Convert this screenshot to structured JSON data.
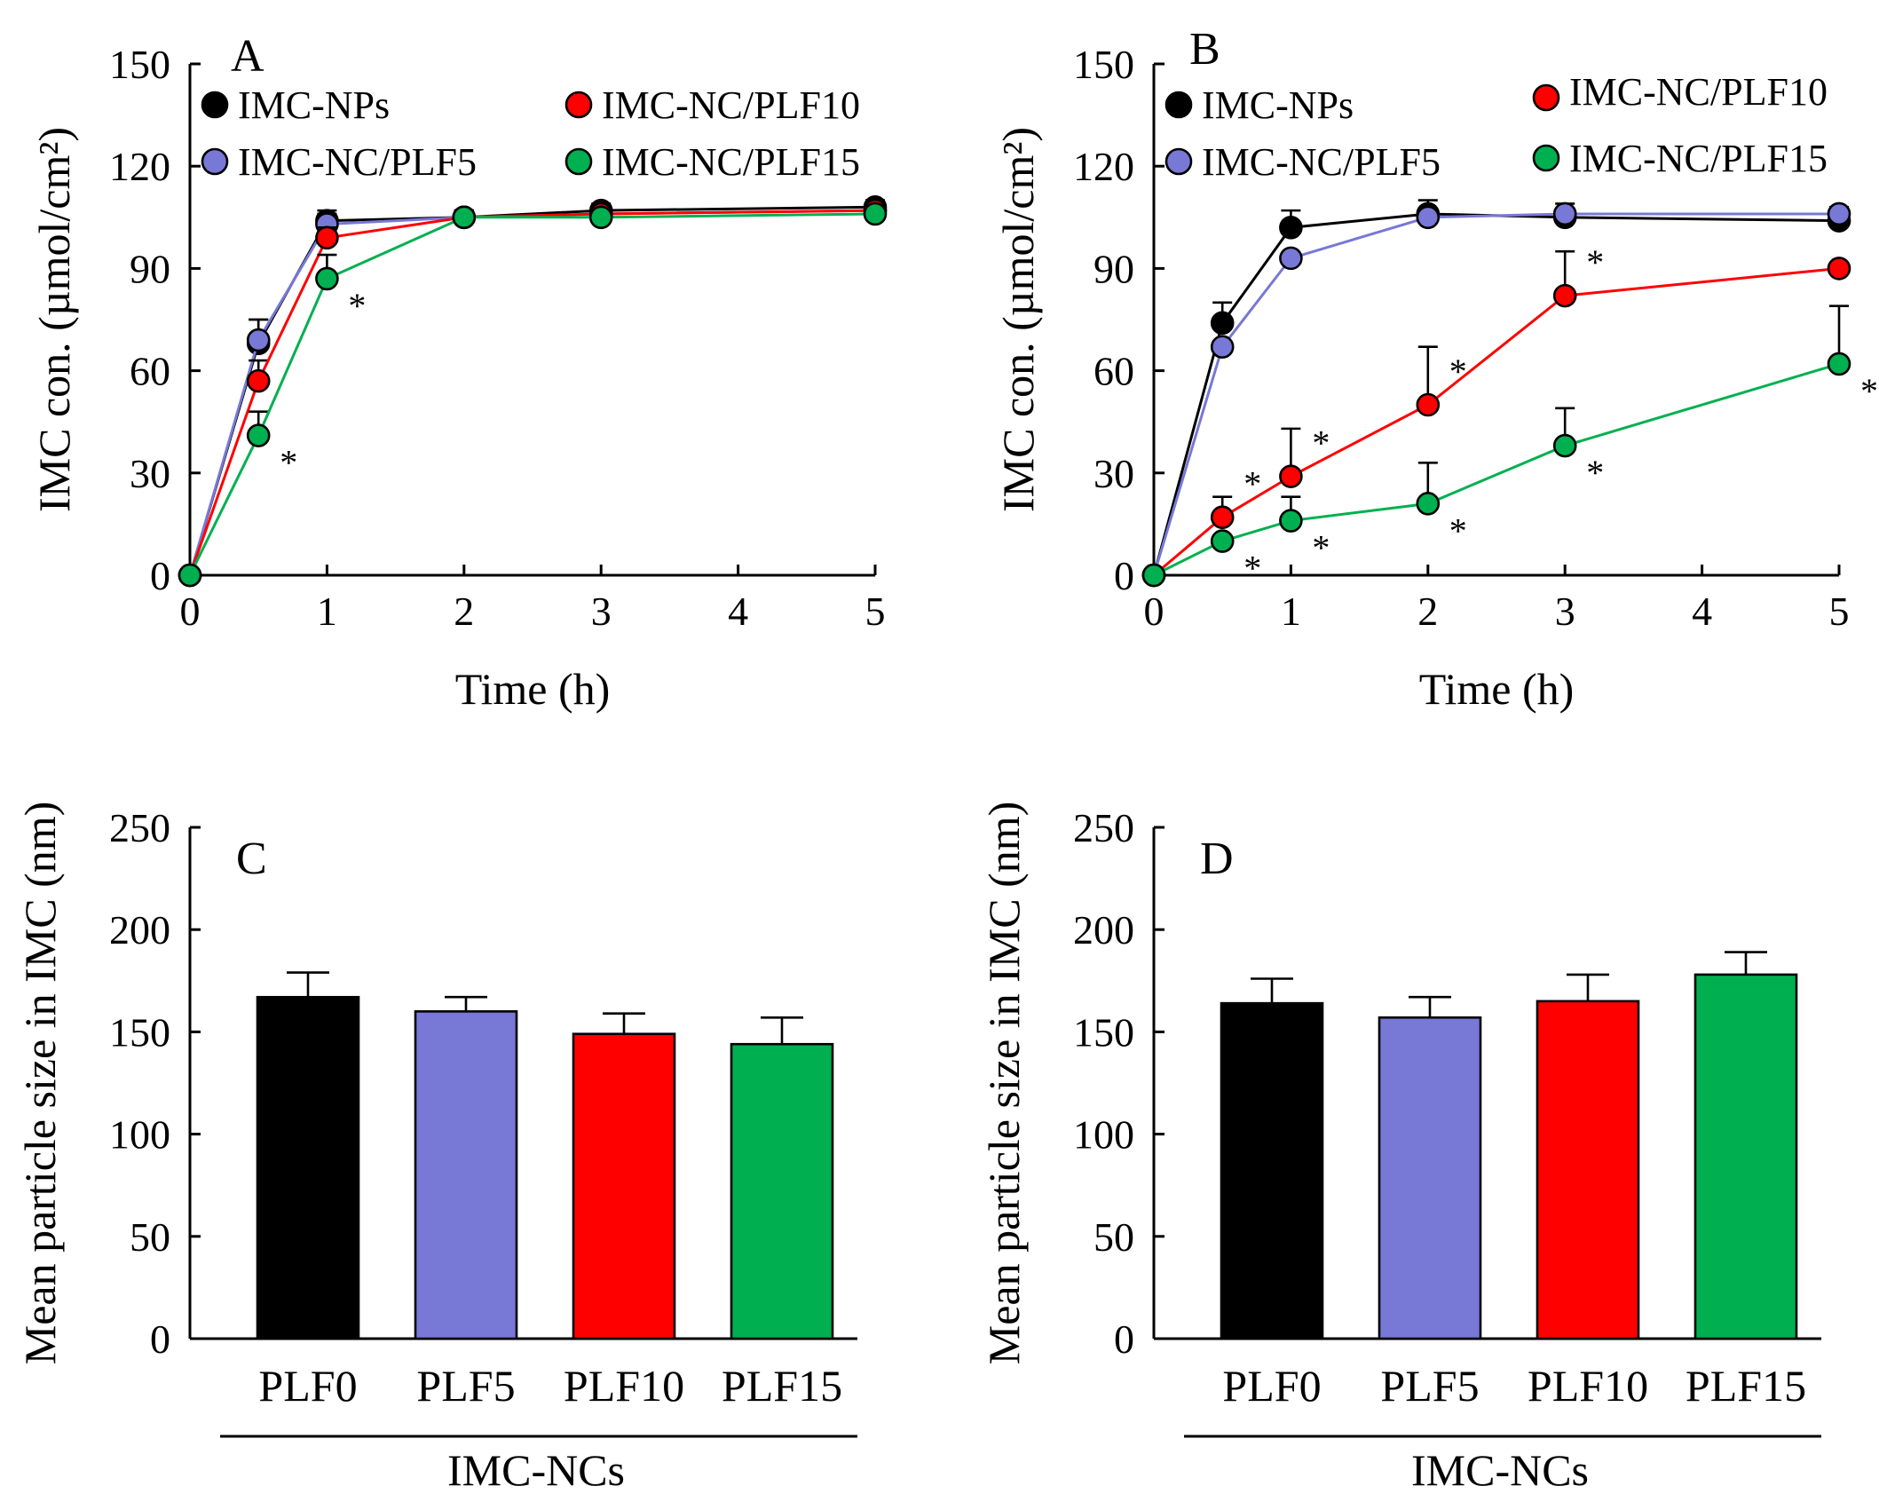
{
  "colors": {
    "IMC-NPs": "#000000",
    "IMC-NC/PLF5": "#7878d6",
    "IMC-NC/PLF10": "#ff0000",
    "IMC-NC/PLF15": "#00b050"
  },
  "chart_data": [
    {
      "id": "A",
      "type": "line",
      "panel_label": "A",
      "xlabel": "Time (h)",
      "ylabel": "IMC con. (µmol/cm²)",
      "xlim": [
        0,
        5
      ],
      "ylim": [
        0,
        150
      ],
      "xticks": [
        0,
        1,
        2,
        3,
        4,
        5
      ],
      "yticks": [
        0,
        30,
        60,
        90,
        120,
        150
      ],
      "x": [
        0,
        0.5,
        1,
        2,
        3,
        5
      ],
      "legend": [
        "IMC-NPs",
        "IMC-NC/PLF5",
        "IMC-NC/PLF10",
        "IMC-NC/PLF15"
      ],
      "series": [
        {
          "name": "IMC-NPs",
          "values": [
            0,
            68,
            104,
            105,
            107,
            108
          ],
          "errors": [
            0,
            7,
            3,
            2,
            2,
            2
          ],
          "sig": [
            false,
            false,
            false,
            false,
            false,
            false
          ]
        },
        {
          "name": "IMC-NC/PLF5",
          "values": [
            0,
            69,
            103,
            105,
            106,
            107
          ],
          "errors": [
            0,
            6,
            3,
            2,
            2,
            2
          ],
          "sig": [
            false,
            false,
            false,
            false,
            false,
            false
          ]
        },
        {
          "name": "IMC-NC/PLF10",
          "values": [
            0,
            57,
            99,
            105,
            106,
            107
          ],
          "errors": [
            0,
            6,
            3,
            2,
            2,
            2
          ],
          "sig": [
            false,
            false,
            false,
            false,
            false,
            false
          ]
        },
        {
          "name": "IMC-NC/PLF15",
          "values": [
            0,
            41,
            87,
            105,
            105,
            106
          ],
          "errors": [
            0,
            7,
            7,
            2,
            2,
            2
          ],
          "sig": [
            false,
            true,
            true,
            false,
            false,
            false
          ]
        }
      ],
      "significance_mark": "*"
    },
    {
      "id": "B",
      "type": "line",
      "panel_label": "B",
      "xlabel": "Time (h)",
      "ylabel": "IMC con. (µmol/cm²)",
      "xlim": [
        0,
        5
      ],
      "ylim": [
        0,
        150
      ],
      "xticks": [
        0,
        1,
        2,
        3,
        4,
        5
      ],
      "yticks": [
        0,
        30,
        60,
        90,
        120,
        150
      ],
      "x": [
        0,
        0.5,
        1,
        2,
        3,
        5
      ],
      "legend": [
        "IMC-NPs",
        "IMC-NC/PLF5",
        "IMC-NC/PLF10",
        "IMC-NC/PLF15"
      ],
      "series": [
        {
          "name": "IMC-NPs",
          "values": [
            0,
            74,
            102,
            106,
            105,
            104
          ],
          "errors": [
            0,
            6,
            5,
            4,
            4,
            4
          ],
          "sig": [
            false,
            false,
            false,
            false,
            false,
            false
          ]
        },
        {
          "name": "IMC-NC/PLF5",
          "values": [
            0,
            67,
            93,
            105,
            106,
            106
          ],
          "errors": [
            0,
            0,
            0,
            0,
            0,
            0
          ],
          "sig": [
            false,
            false,
            false,
            false,
            false,
            false
          ]
        },
        {
          "name": "IMC-NC/PLF10",
          "values": [
            0,
            17,
            29,
            50,
            82,
            90
          ],
          "errors": [
            0,
            6,
            14,
            17,
            13,
            0
          ],
          "sig": [
            false,
            true,
            true,
            true,
            true,
            false
          ]
        },
        {
          "name": "IMC-NC/PLF15",
          "values": [
            0,
            10,
            16,
            21,
            38,
            62
          ],
          "errors": [
            0,
            0,
            7,
            12,
            11,
            17
          ],
          "sig": [
            false,
            true,
            true,
            true,
            true,
            true
          ]
        }
      ],
      "significance_mark": "*"
    },
    {
      "id": "C",
      "type": "bar",
      "panel_label": "C",
      "ylabel": "Mean particle size in IMC (nm)",
      "ylim": [
        0,
        250
      ],
      "yticks": [
        0,
        50,
        100,
        150,
        200,
        250
      ],
      "categories": [
        "PLF0",
        "PLF5",
        "PLF10",
        "PLF15"
      ],
      "values": [
        167,
        160,
        149,
        144
      ],
      "errors": [
        12,
        7,
        10,
        13
      ],
      "group_label": "IMC-NCs"
    },
    {
      "id": "D",
      "type": "bar",
      "panel_label": "D",
      "ylabel": "Mean particle size in IMC (nm)",
      "ylim": [
        0,
        250
      ],
      "yticks": [
        0,
        50,
        100,
        150,
        200,
        250
      ],
      "categories": [
        "PLF0",
        "PLF5",
        "PLF10",
        "PLF15"
      ],
      "values": [
        164,
        157,
        165,
        178
      ],
      "errors": [
        12,
        10,
        13,
        11
      ],
      "group_label": "IMC-NCs"
    }
  ]
}
